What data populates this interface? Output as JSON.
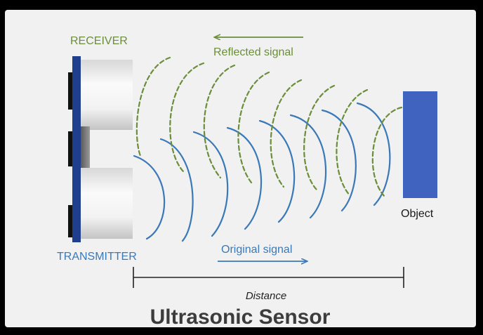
{
  "diagram": {
    "labels": {
      "receiver": "RECEIVER",
      "transmitter": "TRANSMITTER",
      "reflected_signal": "Reflected signal",
      "original_signal": "Original signal",
      "object": "Object",
      "distance": "Distance"
    },
    "title": "Ultrasonic Sensor",
    "colors": {
      "background": "#000000",
      "panel": "#f1f1f1",
      "green": "#6b8e3a",
      "blue": "#3a79b8",
      "board": "#1f3e8e",
      "object": "#3f63bf",
      "title": "#3c3c3c",
      "can_light": "#f7f7f7",
      "can_shade": "#c7c7c7"
    },
    "icons": {
      "reflected_arrow": "arrow-left",
      "original_arrow": "arrow-right"
    }
  }
}
